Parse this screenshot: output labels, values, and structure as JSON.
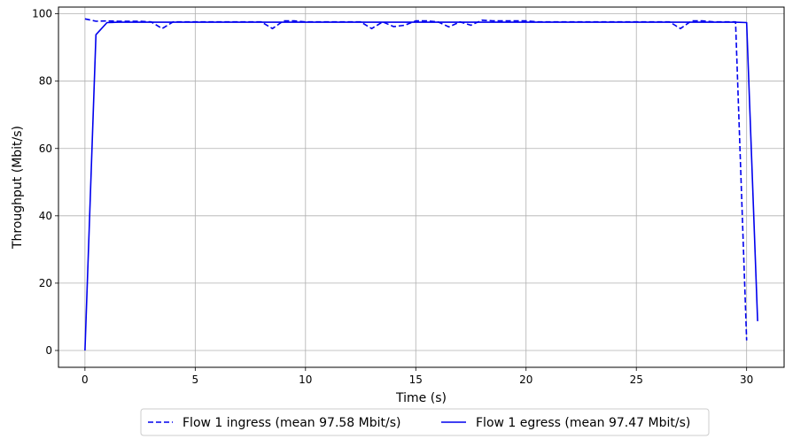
{
  "chart_data": {
    "type": "line",
    "title": "",
    "xlabel": "Time (s)",
    "ylabel": "Throughput (Mbit/s)",
    "xlim": [
      -1.2,
      31.7
    ],
    "ylim": [
      -5,
      102
    ],
    "xticks": [
      0,
      5,
      10,
      15,
      20,
      25,
      30
    ],
    "yticks": [
      0,
      20,
      40,
      60,
      80,
      100
    ],
    "grid": true,
    "legend_position": "bottom-center",
    "series": [
      {
        "name": "Flow 1 ingress (mean 97.58 Mbit/s)",
        "color": "#0000ee",
        "style": "dashed",
        "x": [
          0,
          0.5,
          1,
          1.5,
          2,
          2.5,
          3,
          3.5,
          4,
          4.5,
          5,
          5.5,
          6,
          6.5,
          7,
          7.5,
          8,
          8.5,
          9,
          9.5,
          10,
          10.5,
          11,
          11.5,
          12,
          12.5,
          13,
          13.5,
          14,
          14.5,
          15,
          15.5,
          16,
          16.5,
          17,
          17.5,
          18,
          18.5,
          19,
          19.5,
          20,
          20.5,
          21,
          21.5,
          22,
          22.5,
          23,
          23.5,
          24,
          24.5,
          25,
          25.5,
          26,
          26.5,
          27,
          27.5,
          28,
          28.5,
          29,
          29.5,
          30
        ],
        "y": [
          98.5,
          97.8,
          97.9,
          97.8,
          97.8,
          97.8,
          97.6,
          95.6,
          97.6,
          97.6,
          97.6,
          97.6,
          97.6,
          97.6,
          97.6,
          97.6,
          97.6,
          95.6,
          97.9,
          97.9,
          97.6,
          97.6,
          97.6,
          97.6,
          97.6,
          97.6,
          95.6,
          97.6,
          96.2,
          96.6,
          97.9,
          97.9,
          97.6,
          96.1,
          97.6,
          96.6,
          98.1,
          97.9,
          97.9,
          97.9,
          97.9,
          97.6,
          97.6,
          97.6,
          97.6,
          97.6,
          97.6,
          97.6,
          97.6,
          97.6,
          97.6,
          97.6,
          97.6,
          97.6,
          95.6,
          97.9,
          97.9,
          97.6,
          97.6,
          97.6,
          3
        ]
      },
      {
        "name": "Flow 1 egress (mean 97.47 Mbit/s)",
        "color": "#0000ee",
        "style": "solid",
        "x": [
          0,
          0.5,
          1,
          1.5,
          2,
          5,
          10,
          15,
          20,
          25,
          29.5,
          30,
          30.5
        ],
        "y": [
          0,
          93.8,
          97.4,
          97.5,
          97.5,
          97.5,
          97.5,
          97.5,
          97.5,
          97.5,
          97.5,
          97.4,
          8.7
        ]
      }
    ]
  }
}
